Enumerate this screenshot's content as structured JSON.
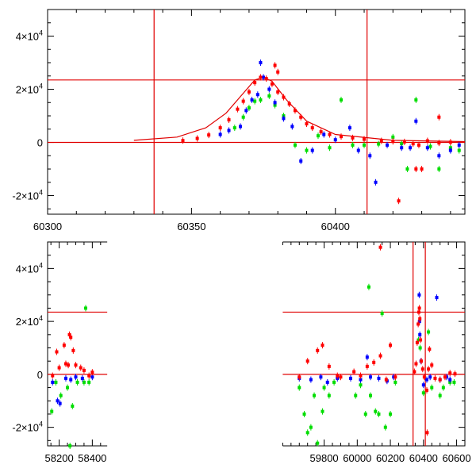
{
  "chart_data": [
    {
      "type": "scatter",
      "title": "",
      "xlabel": "",
      "ylabel": "",
      "xlim": [
        60300,
        60445
      ],
      "ylim": [
        -27000,
        50000
      ],
      "x_ticks": [
        60300,
        60350,
        60400
      ],
      "y_ticks": [
        {
          "value": 40000,
          "mantissa": "4",
          "exp": "4"
        },
        {
          "value": 20000,
          "mantissa": "2",
          "exp": "4"
        },
        {
          "value": 0,
          "mantissa": "0",
          "exp": ""
        },
        {
          "value": -20000,
          "mantissa": "-2",
          "exp": "4"
        }
      ],
      "reference_lines": {
        "vertical": [
          60337,
          60411
        ],
        "horizontal": [
          0,
          23500
        ]
      },
      "model_curve": [
        [
          60330,
          800
        ],
        [
          60345,
          2000
        ],
        [
          60355,
          5500
        ],
        [
          60362,
          11000
        ],
        [
          60368,
          18500
        ],
        [
          60372,
          23500
        ],
        [
          60375,
          24500
        ],
        [
          60378,
          23000
        ],
        [
          60383,
          16000
        ],
        [
          60390,
          8000
        ],
        [
          60400,
          3000
        ],
        [
          60420,
          800
        ],
        [
          60445,
          300
        ]
      ],
      "series": [
        {
          "name": "",
          "color": "#ff0000",
          "points": [
            [
              60347,
              700
            ],
            [
              60352,
              1500
            ],
            [
              60356,
              2800
            ],
            [
              60360,
              5500
            ],
            [
              60363,
              8500
            ],
            [
              60366,
              12500
            ],
            [
              60368,
              15500
            ],
            [
              60370,
              19000
            ],
            [
              60372,
              22500
            ],
            [
              60374,
              24500
            ],
            [
              60376,
              24000
            ],
            [
              60378,
              22000
            ],
            [
              60380,
              19000
            ],
            [
              60382,
              17000
            ],
            [
              60384,
              14500
            ],
            [
              60386,
              12000
            ],
            [
              60388,
              9500
            ],
            [
              60390,
              7000
            ],
            [
              60392,
              5500
            ],
            [
              60395,
              4000
            ],
            [
              60398,
              3000
            ],
            [
              60402,
              2200
            ],
            [
              60406,
              1700
            ],
            [
              60410,
              1200
            ],
            [
              60416,
              600
            ],
            [
              60420,
              400
            ],
            [
              60424,
              200
            ],
            [
              60427,
              -500
            ],
            [
              60429,
              -1000
            ],
            [
              60432,
              600
            ],
            [
              60436,
              -200
            ],
            [
              60440,
              100
            ],
            [
              60379,
              29000
            ],
            [
              60380,
              26500
            ],
            [
              60428,
              -10000
            ],
            [
              60430,
              -10000
            ],
            [
              60422,
              -22000
            ],
            [
              60436,
              9500
            ]
          ]
        },
        {
          "name": "",
          "color": "#0000ff",
          "points": [
            [
              60360,
              3000
            ],
            [
              60363,
              4500
            ],
            [
              60367,
              6000
            ],
            [
              60369,
              12000
            ],
            [
              60371,
              16000
            ],
            [
              60373,
              18000
            ],
            [
              60374,
              30000
            ],
            [
              60375,
              24500
            ],
            [
              60377,
              20000
            ],
            [
              60379,
              15000
            ],
            [
              60382,
              9000
            ],
            [
              60385,
              6000
            ],
            [
              60388,
              -7000
            ],
            [
              60392,
              -3000
            ],
            [
              60396,
              3000
            ],
            [
              60400,
              1000
            ],
            [
              60405,
              5500
            ],
            [
              60408,
              -3000
            ],
            [
              60412,
              -5000
            ],
            [
              60414,
              -15000
            ],
            [
              60418,
              -1000
            ],
            [
              60423,
              -2000
            ],
            [
              60426,
              -2000
            ],
            [
              60428,
              8000
            ],
            [
              60432,
              -2000
            ],
            [
              60436,
              -5000
            ],
            [
              60440,
              -3000
            ],
            [
              60443,
              -1000
            ]
          ]
        },
        {
          "name": "",
          "color": "#00dd00",
          "points": [
            [
              60365,
              5500
            ],
            [
              60368,
              9500
            ],
            [
              60370,
              13000
            ],
            [
              60372,
              15500
            ],
            [
              60374,
              16000
            ],
            [
              60377,
              17500
            ],
            [
              60379,
              14000
            ],
            [
              60382,
              10000
            ],
            [
              60386,
              -1000
            ],
            [
              60390,
              -3000
            ],
            [
              60394,
              2500
            ],
            [
              60398,
              -2000
            ],
            [
              60402,
              16000
            ],
            [
              60406,
              -1000
            ],
            [
              60410,
              -1000
            ],
            [
              60415,
              -600
            ],
            [
              60420,
              2000
            ],
            [
              60423,
              -500
            ],
            [
              60425,
              -10000
            ],
            [
              60428,
              16000
            ],
            [
              60433,
              -1500
            ],
            [
              60436,
              -10000
            ],
            [
              60440,
              -2000
            ],
            [
              60443,
              -3000
            ]
          ]
        }
      ]
    },
    {
      "type": "scatter",
      "title": "",
      "xlabel": "",
      "ylabel": "",
      "xlim": [
        58130,
        60650
      ],
      "ylim": [
        -27000,
        50000
      ],
      "x_ticks": [
        58200,
        58400,
        59800,
        60000,
        60200,
        60400,
        60600
      ],
      "x_break": [
        58490,
        59550
      ],
      "y_ticks": [
        {
          "value": 40000,
          "mantissa": "4",
          "exp": "4"
        },
        {
          "value": 20000,
          "mantissa": "2",
          "exp": "4"
        },
        {
          "value": 0,
          "mantissa": "0",
          "exp": ""
        },
        {
          "value": -20000,
          "mantissa": "-2",
          "exp": "4"
        }
      ],
      "reference_lines": {
        "vertical": [
          60337,
          60411
        ],
        "horizontal": [
          0,
          23500
        ]
      },
      "series": [
        {
          "name": "",
          "color": "#ff0000",
          "points": [
            [
              58160,
              -500
            ],
            [
              58185,
              8500
            ],
            [
              58200,
              2500
            ],
            [
              58230,
              11000
            ],
            [
              58240,
              4000
            ],
            [
              58255,
              3500
            ],
            [
              58262,
              15000
            ],
            [
              58270,
              14000
            ],
            [
              58285,
              9000
            ],
            [
              58300,
              3500
            ],
            [
              58330,
              2500
            ],
            [
              58350,
              1500
            ],
            [
              58380,
              -500
            ],
            [
              58400,
              800
            ],
            [
              59650,
              -1000
            ],
            [
              59700,
              5000
            ],
            [
              59760,
              9000
            ],
            [
              59790,
              11000
            ],
            [
              59830,
              3000
            ],
            [
              59880,
              -500
            ],
            [
              59900,
              -1000
            ],
            [
              59980,
              1000
            ],
            [
              60020,
              -500
            ],
            [
              60060,
              3000
            ],
            [
              60100,
              4500
            ],
            [
              60140,
              7000
            ],
            [
              60175,
              -2000
            ],
            [
              60200,
              11000
            ],
            [
              60230,
              -1000
            ],
            [
              60140,
              48000
            ],
            [
              60345,
              1000
            ],
            [
              60355,
              4000
            ],
            [
              60362,
              12000
            ],
            [
              60368,
              19000
            ],
            [
              60372,
              23500
            ],
            [
              60375,
              25000
            ],
            [
              60378,
              21000
            ],
            [
              60382,
              13000
            ],
            [
              60387,
              5000
            ],
            [
              60395,
              2000
            ],
            [
              60405,
              -1000
            ],
            [
              60420,
              -6000
            ],
            [
              60430,
              2000
            ],
            [
              60450,
              3500
            ],
            [
              60470,
              -1500
            ],
            [
              60500,
              -2000
            ],
            [
              60530,
              -1000
            ],
            [
              60560,
              500
            ],
            [
              60590,
              200
            ],
            [
              60422,
              -22000
            ],
            [
              60436,
              9500
            ]
          ]
        },
        {
          "name": "",
          "color": "#0000ff",
          "points": [
            [
              58160,
              -3000
            ],
            [
              58190,
              -10000
            ],
            [
              58205,
              -11000
            ],
            [
              58240,
              -1500
            ],
            [
              58270,
              -2000
            ],
            [
              58300,
              -1000
            ],
            [
              58340,
              -1500
            ],
            [
              58400,
              -1000
            ],
            [
              59650,
              -1500
            ],
            [
              59720,
              -2000
            ],
            [
              59780,
              -1000
            ],
            [
              59820,
              -3000
            ],
            [
              59880,
              -1500
            ],
            [
              59960,
              -1500
            ],
            [
              60020,
              -2000
            ],
            [
              60060,
              6500
            ],
            [
              60080,
              -1000
            ],
            [
              60130,
              -1500
            ],
            [
              60180,
              -2500
            ],
            [
              60220,
              -1000
            ],
            [
              60374,
              30000
            ],
            [
              60376,
              20000
            ],
            [
              60378,
              15000
            ],
            [
              60385,
              5000
            ],
            [
              60400,
              -4000
            ],
            [
              60420,
              -2000
            ],
            [
              60440,
              -1000
            ],
            [
              60480,
              29000
            ],
            [
              60500,
              -2000
            ],
            [
              60540,
              -1000
            ],
            [
              60560,
              -2000
            ]
          ]
        },
        {
          "name": "",
          "color": "#00dd00",
          "points": [
            [
              58155,
              -14000
            ],
            [
              58180,
              -3000
            ],
            [
              58210,
              -8000
            ],
            [
              58250,
              -5000
            ],
            [
              58265,
              -27000
            ],
            [
              58280,
              -12000
            ],
            [
              58310,
              -3000
            ],
            [
              58350,
              -3000
            ],
            [
              58360,
              25000
            ],
            [
              58380,
              -3000
            ],
            [
              59650,
              -5000
            ],
            [
              59680,
              -15000
            ],
            [
              59700,
              -22000
            ],
            [
              59720,
              -20000
            ],
            [
              59740,
              -8000
            ],
            [
              59760,
              -26000
            ],
            [
              59790,
              -14000
            ],
            [
              59800,
              -5000
            ],
            [
              59830,
              -8000
            ],
            [
              59860,
              -3000
            ],
            [
              59990,
              -8000
            ],
            [
              60020,
              -4000
            ],
            [
              60050,
              -15000
            ],
            [
              60070,
              33000
            ],
            [
              60080,
              -8000
            ],
            [
              60110,
              -14000
            ],
            [
              60130,
              -15000
            ],
            [
              60150,
              23000
            ],
            [
              60170,
              -20000
            ],
            [
              60200,
              -15000
            ],
            [
              60230,
              -3000
            ],
            [
              60370,
              13000
            ],
            [
              60380,
              10000
            ],
            [
              60400,
              -7000
            ],
            [
              60430,
              16000
            ],
            [
              60450,
              -5000
            ],
            [
              60500,
              -8000
            ],
            [
              60520,
              -5000
            ],
            [
              60560,
              -3000
            ],
            [
              60585,
              -3000
            ]
          ]
        }
      ]
    }
  ]
}
